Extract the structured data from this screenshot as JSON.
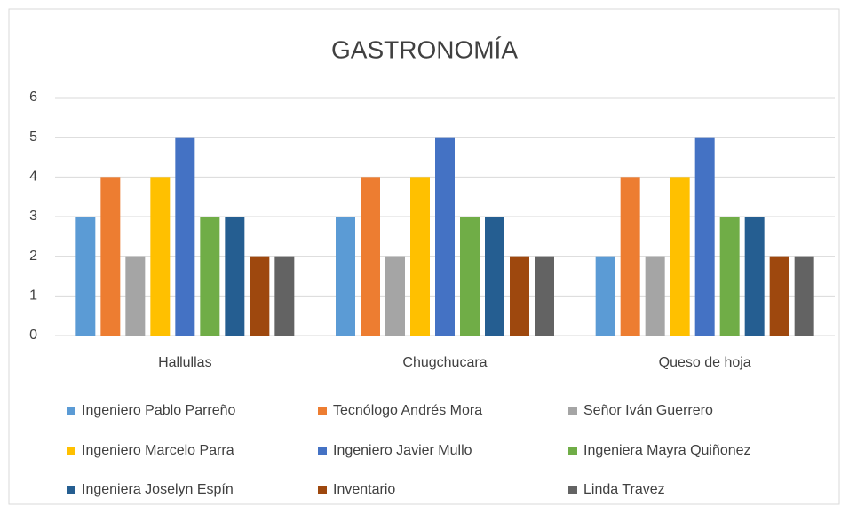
{
  "chart_data": {
    "type": "bar",
    "title": "GASTRONOMÍA",
    "categories": [
      "Hallullas",
      "Chugchucara",
      "Queso de hoja"
    ],
    "series": [
      {
        "name": "Ingeniero Pablo Parreño",
        "color": "#5b9bd5",
        "values": [
          3,
          3,
          2
        ]
      },
      {
        "name": "Tecnólogo Andrés Mora",
        "color": "#ed7d31",
        "values": [
          4,
          4,
          4
        ]
      },
      {
        "name": "Señor Iván Guerrero",
        "color": "#a5a5a5",
        "values": [
          2,
          2,
          2
        ]
      },
      {
        "name": "Ingeniero Marcelo Parra",
        "color": "#ffc000",
        "values": [
          4,
          4,
          4
        ]
      },
      {
        "name": "Ingeniero Javier Mullo",
        "color": "#4472c4",
        "values": [
          5,
          5,
          5
        ]
      },
      {
        "name": "Ingeniera Mayra Quiñonez",
        "color": "#70ad47",
        "values": [
          3,
          3,
          3
        ]
      },
      {
        "name": "Ingeniera Joselyn Espín",
        "color": "#255e91",
        "values": [
          3,
          3,
          3
        ]
      },
      {
        "name": "Inventario",
        "color": "#9e480e",
        "values": [
          2,
          2,
          2
        ]
      },
      {
        "name": "Linda Travez",
        "color": "#636363",
        "values": [
          2,
          2,
          2
        ]
      }
    ],
    "ylim": [
      0,
      6
    ],
    "yticks": [
      0,
      1,
      2,
      3,
      4,
      5,
      6
    ],
    "grid": true,
    "legend": "bottom"
  }
}
